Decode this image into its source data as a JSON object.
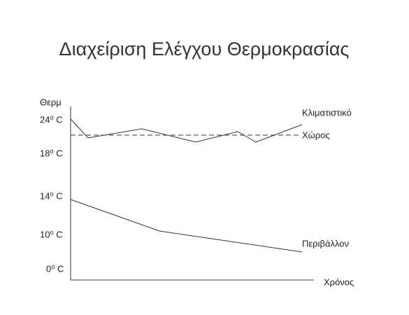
{
  "title": "Διαχείριση Ελέγχου Θερμοκρασίας",
  "y_axis_label": "Θερμ",
  "y_labels": [
    "24⁰ C",
    "18⁰ C",
    "14⁰ C",
    "10⁰ C",
    "0⁰ C"
  ],
  "x_axis_label": "Χρόνος",
  "line_labels": [
    "Κλιματιστικό",
    "Χώρος",
    "Περιβάλλον"
  ]
}
